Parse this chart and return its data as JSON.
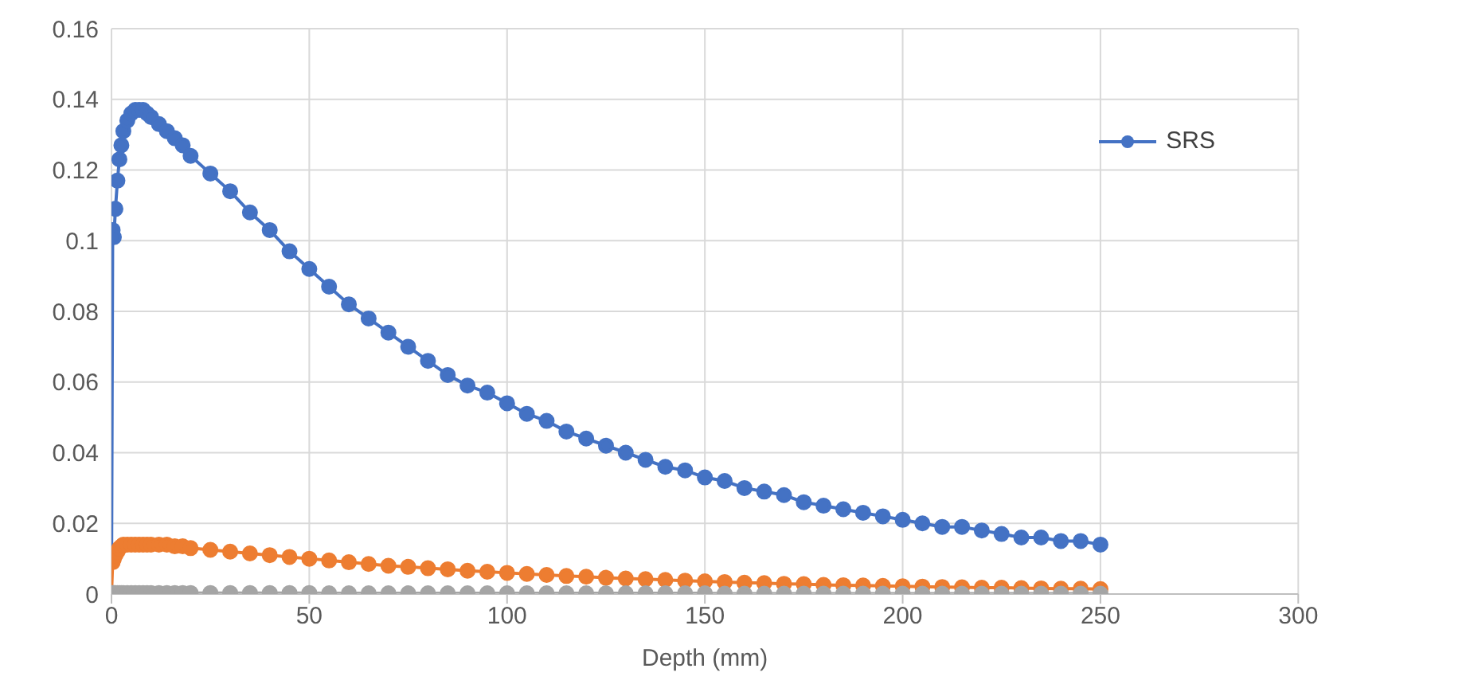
{
  "chart_data": {
    "type": "line",
    "xlabel": "Depth (mm)",
    "x": [
      0,
      0.3,
      0.6,
      1,
      1.5,
      2,
      2.5,
      3,
      4,
      5,
      6,
      7,
      8,
      9,
      10,
      12,
      14,
      16,
      18,
      20,
      25,
      30,
      35,
      40,
      45,
      50,
      55,
      60,
      65,
      70,
      75,
      80,
      85,
      90,
      95,
      100,
      105,
      110,
      115,
      120,
      125,
      130,
      135,
      140,
      145,
      150,
      155,
      160,
      165,
      170,
      175,
      180,
      185,
      190,
      195,
      200,
      205,
      210,
      215,
      220,
      225,
      230,
      235,
      240,
      245,
      250
    ],
    "series": [
      {
        "name": "SRS",
        "color": "#4472c4",
        "values": [
          0,
          0.103,
          0.101,
          0.109,
          0.117,
          0.123,
          0.127,
          0.131,
          0.134,
          0.136,
          0.137,
          0.137,
          0.137,
          0.136,
          0.135,
          0.133,
          0.131,
          0.129,
          0.127,
          0.124,
          0.119,
          0.114,
          0.108,
          0.103,
          0.097,
          0.092,
          0.087,
          0.082,
          0.078,
          0.074,
          0.07,
          0.066,
          0.062,
          0.059,
          0.057,
          0.054,
          0.051,
          0.049,
          0.046,
          0.044,
          0.042,
          0.04,
          0.038,
          0.036,
          0.035,
          0.033,
          0.032,
          0.03,
          0.029,
          0.028,
          0.026,
          0.025,
          0.024,
          0.023,
          0.022,
          0.021,
          0.02,
          0.019,
          0.019,
          0.018,
          0.017,
          0.016,
          0.016,
          0.015,
          0.015,
          0.014
        ]
      },
      {
        "color": "#ed7d31",
        "values": [
          0,
          0.009,
          0.01,
          0.011,
          0.012,
          0.013,
          0.0135,
          0.014,
          0.014,
          0.014,
          0.014,
          0.014,
          0.014,
          0.014,
          0.014,
          0.014,
          0.014,
          0.0135,
          0.0135,
          0.013,
          0.0125,
          0.012,
          0.0115,
          0.011,
          0.0105,
          0.01,
          0.0095,
          0.009,
          0.0085,
          0.008,
          0.0077,
          0.0073,
          0.007,
          0.0066,
          0.0063,
          0.006,
          0.0057,
          0.0054,
          0.0051,
          0.0049,
          0.0046,
          0.0044,
          0.0042,
          0.004,
          0.0038,
          0.0036,
          0.0034,
          0.0032,
          0.0031,
          0.0029,
          0.0028,
          0.0026,
          0.0025,
          0.0024,
          0.0023,
          0.0022,
          0.0021,
          0.002,
          0.0019,
          0.0018,
          0.0018,
          0.0017,
          0.0016,
          0.0015,
          0.0015,
          0.0014
        ]
      },
      {
        "color": "#a5a5a5",
        "values": [
          0,
          0.0003,
          0.0003,
          0.0003,
          0.0003,
          0.0003,
          0.0003,
          0.0003,
          0.0003,
          0.0003,
          0.0003,
          0.0003,
          0.0003,
          0.0003,
          0.0003,
          0.0003,
          0.0003,
          0.0003,
          0.0003,
          0.0003,
          0.0003,
          0.0003,
          0.0003,
          0.0003,
          0.0003,
          0.0003,
          0.0002,
          0.0002,
          0.0002,
          0.0002,
          0.0002,
          0.0002,
          0.0002,
          0.0002,
          0.0002,
          0.0002,
          0.0002,
          0.0002,
          0.0002,
          0.0002,
          0.0002,
          0.0002,
          0.0002,
          0.0002,
          0.0002,
          0.0002,
          0.0001,
          0.0001,
          0.0001,
          0.0001,
          0.0001,
          0.0001,
          0.0001,
          0.0001,
          0.0001,
          0.0001,
          0.0001,
          0.0001,
          0.0001,
          0.0001,
          0.0001,
          0.0001,
          0.0001,
          0.0001,
          0.0001,
          0.0001
        ]
      }
    ],
    "xlim": [
      0,
      300
    ],
    "xticks": [
      0,
      50,
      100,
      150,
      200,
      250,
      300
    ],
    "ylim": [
      0,
      0.16
    ],
    "yticks": [
      0,
      0.02,
      0.04,
      0.06,
      0.08,
      0.1,
      0.12,
      0.14,
      0.16
    ],
    "grid": true,
    "legend": "right",
    "marker": "circle",
    "line_style": "solid"
  }
}
